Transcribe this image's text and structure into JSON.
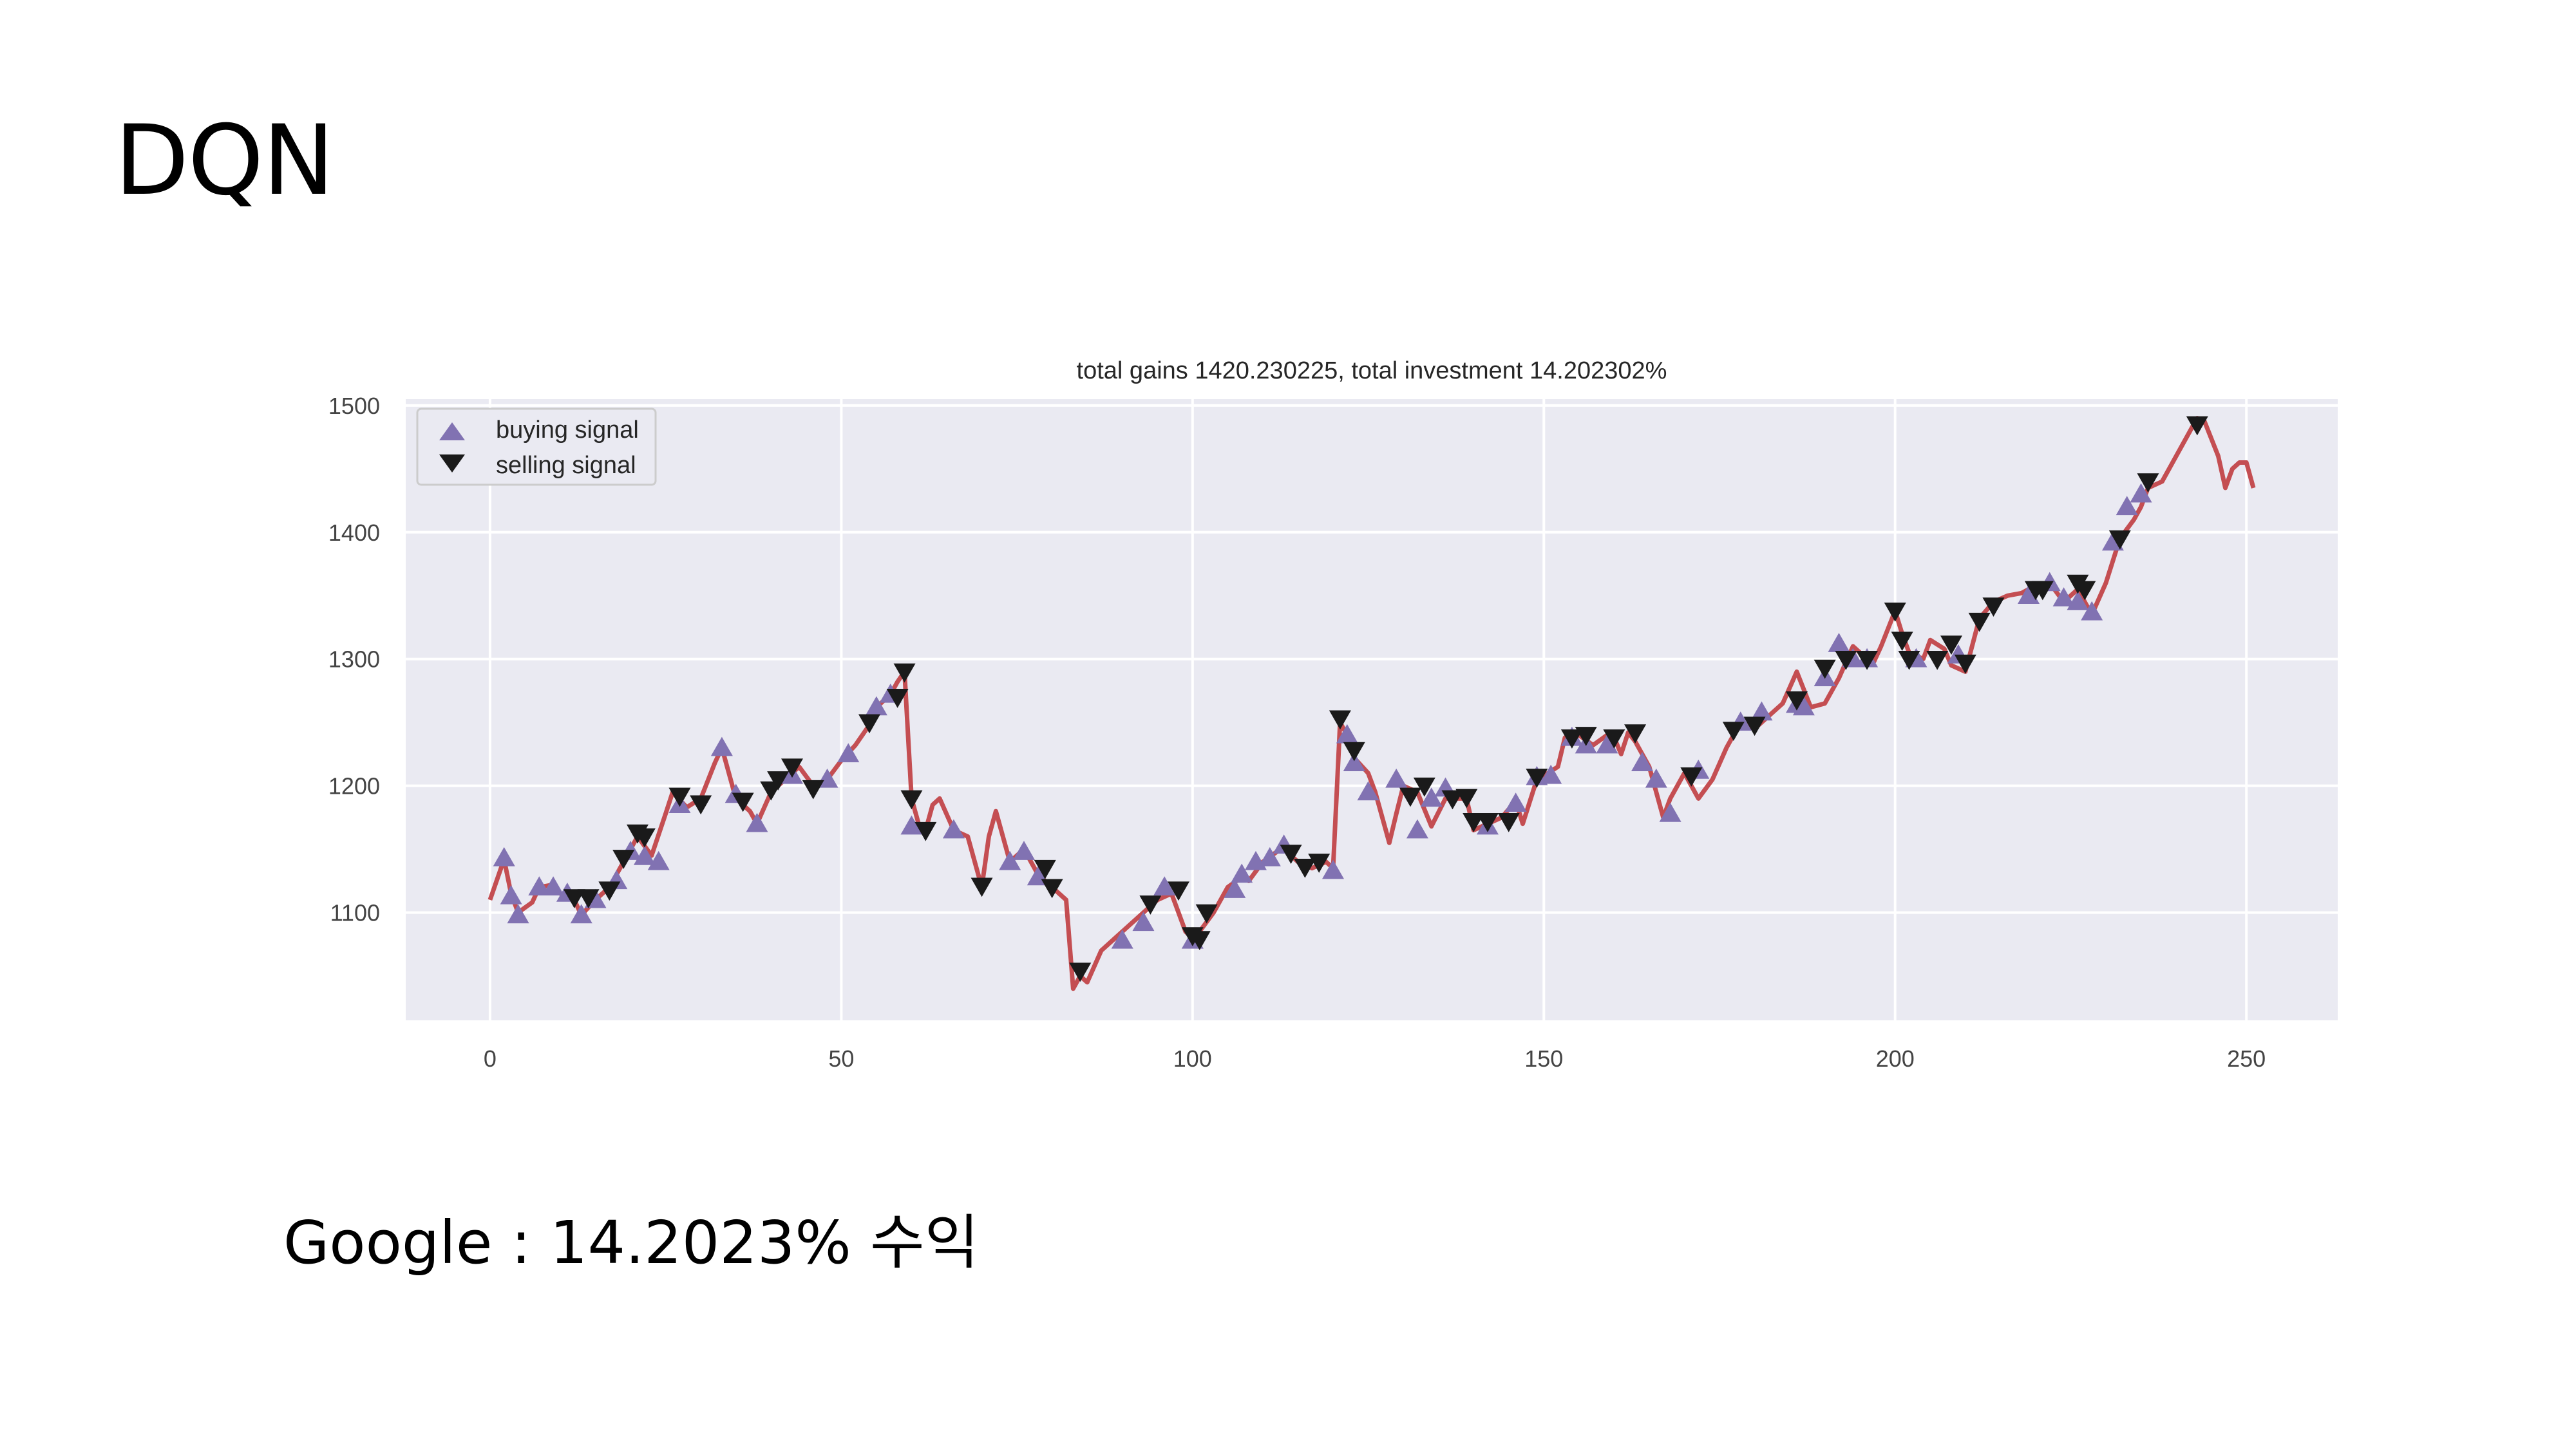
{
  "slide": {
    "title": "DQN",
    "caption": "Google : 14.2023% 수익"
  },
  "chart_data": {
    "type": "line",
    "title": "total gains 1420.230225, total investment 14.202302%",
    "xlabel": "",
    "ylabel": "",
    "xlim": [
      -12,
      263
    ],
    "ylim": [
      1015,
      1505
    ],
    "x_ticks": [
      0,
      50,
      100,
      150,
      200,
      250
    ],
    "y_ticks": [
      1100,
      1200,
      1300,
      1400,
      1500
    ],
    "grid": true,
    "legend_position": "upper-left",
    "colors": {
      "background": "#eaeaf2",
      "line": "#c44e52",
      "buy": "#8172b2",
      "sell": "#1a1a1a"
    },
    "series": [
      {
        "name": "",
        "kind": "price",
        "points": [
          [
            0,
            1110
          ],
          [
            2,
            1142
          ],
          [
            3,
            1115
          ],
          [
            4,
            1100
          ],
          [
            6,
            1108
          ],
          [
            7,
            1120
          ],
          [
            9,
            1122
          ],
          [
            10,
            1115
          ],
          [
            12,
            1110
          ],
          [
            13,
            1098
          ],
          [
            15,
            1110
          ],
          [
            17,
            1120
          ],
          [
            19,
            1140
          ],
          [
            21,
            1160
          ],
          [
            23,
            1145
          ],
          [
            25,
            1178
          ],
          [
            26,
            1195
          ],
          [
            28,
            1183
          ],
          [
            30,
            1190
          ],
          [
            32,
            1218
          ],
          [
            33,
            1230
          ],
          [
            35,
            1190
          ],
          [
            37,
            1180
          ],
          [
            38,
            1170
          ],
          [
            40,
            1195
          ],
          [
            42,
            1205
          ],
          [
            44,
            1215
          ],
          [
            46,
            1200
          ],
          [
            48,
            1205
          ],
          [
            50,
            1220
          ],
          [
            52,
            1232
          ],
          [
            54,
            1248
          ],
          [
            55,
            1262
          ],
          [
            57,
            1272
          ],
          [
            58,
            1282
          ],
          [
            59,
            1290
          ],
          [
            60,
            1190
          ],
          [
            61,
            1170
          ],
          [
            62,
            1165
          ],
          [
            63,
            1185
          ],
          [
            64,
            1190
          ],
          [
            66,
            1165
          ],
          [
            68,
            1160
          ],
          [
            70,
            1120
          ],
          [
            71,
            1160
          ],
          [
            72,
            1180
          ],
          [
            74,
            1140
          ],
          [
            76,
            1150
          ],
          [
            78,
            1130
          ],
          [
            80,
            1120
          ],
          [
            82,
            1110
          ],
          [
            83,
            1040
          ],
          [
            84,
            1050
          ],
          [
            85,
            1045
          ],
          [
            87,
            1070
          ],
          [
            89,
            1080
          ],
          [
            91,
            1090
          ],
          [
            93,
            1100
          ],
          [
            95,
            1110
          ],
          [
            97,
            1115
          ],
          [
            99,
            1085
          ],
          [
            100,
            1080
          ],
          [
            101,
            1085
          ],
          [
            103,
            1100
          ],
          [
            105,
            1120
          ],
          [
            107,
            1128
          ],
          [
            108,
            1125
          ],
          [
            110,
            1140
          ],
          [
            112,
            1148
          ],
          [
            113,
            1150
          ],
          [
            115,
            1140
          ],
          [
            117,
            1135
          ],
          [
            119,
            1140
          ],
          [
            120,
            1135
          ],
          [
            121,
            1250
          ],
          [
            122,
            1240
          ],
          [
            123,
            1222
          ],
          [
            125,
            1210
          ],
          [
            126,
            1195
          ],
          [
            128,
            1155
          ],
          [
            129,
            1178
          ],
          [
            130,
            1200
          ],
          [
            132,
            1195
          ],
          [
            134,
            1168
          ],
          [
            136,
            1190
          ],
          [
            138,
            1190
          ],
          [
            139,
            1190
          ],
          [
            140,
            1165
          ],
          [
            142,
            1170
          ],
          [
            144,
            1175
          ],
          [
            146,
            1188
          ],
          [
            147,
            1170
          ],
          [
            149,
            1205
          ],
          [
            150,
            1208
          ],
          [
            152,
            1215
          ],
          [
            153,
            1238
          ],
          [
            155,
            1240
          ],
          [
            157,
            1232
          ],
          [
            159,
            1240
          ],
          [
            160,
            1238
          ],
          [
            161,
            1225
          ],
          [
            162,
            1242
          ],
          [
            163,
            1235
          ],
          [
            165,
            1215
          ],
          [
            167,
            1175
          ],
          [
            168,
            1190
          ],
          [
            170,
            1210
          ],
          [
            172,
            1190
          ],
          [
            174,
            1205
          ],
          [
            176,
            1230
          ],
          [
            178,
            1250
          ],
          [
            180,
            1245
          ],
          [
            182,
            1255
          ],
          [
            184,
            1265
          ],
          [
            186,
            1290
          ],
          [
            188,
            1262
          ],
          [
            190,
            1265
          ],
          [
            192,
            1285
          ],
          [
            194,
            1310
          ],
          [
            196,
            1300
          ],
          [
            197,
            1298
          ],
          [
            198,
            1310
          ],
          [
            200,
            1338
          ],
          [
            201,
            1320
          ],
          [
            202,
            1305
          ],
          [
            204,
            1300
          ],
          [
            205,
            1315
          ],
          [
            207,
            1308
          ],
          [
            208,
            1295
          ],
          [
            210,
            1290
          ],
          [
            212,
            1332
          ],
          [
            214,
            1345
          ],
          [
            216,
            1350
          ],
          [
            218,
            1352
          ],
          [
            220,
            1358
          ],
          [
            221,
            1355
          ],
          [
            222,
            1360
          ],
          [
            224,
            1345
          ],
          [
            226,
            1355
          ],
          [
            228,
            1335
          ],
          [
            230,
            1360
          ],
          [
            232,
            1395
          ],
          [
            234,
            1410
          ],
          [
            235,
            1420
          ],
          [
            236,
            1435
          ],
          [
            238,
            1440
          ],
          [
            240,
            1460
          ],
          [
            242,
            1480
          ],
          [
            243,
            1490
          ],
          [
            244,
            1488
          ],
          [
            246,
            1460
          ],
          [
            247,
            1435
          ],
          [
            248,
            1450
          ],
          [
            249,
            1455
          ],
          [
            250,
            1455
          ],
          [
            251,
            1435
          ]
        ]
      },
      {
        "name": "buying signal",
        "kind": "buy",
        "points": [
          [
            2,
            1143
          ],
          [
            3,
            1113
          ],
          [
            4,
            1098
          ],
          [
            7,
            1120
          ],
          [
            9,
            1120
          ],
          [
            11,
            1115
          ],
          [
            13,
            1098
          ],
          [
            15,
            1110
          ],
          [
            18,
            1125
          ],
          [
            20,
            1148
          ],
          [
            22,
            1144
          ],
          [
            24,
            1140
          ],
          [
            27,
            1185
          ],
          [
            33,
            1230
          ],
          [
            35,
            1193
          ],
          [
            38,
            1170
          ],
          [
            43,
            1208
          ],
          [
            48,
            1205
          ],
          [
            51,
            1225
          ],
          [
            55,
            1262
          ],
          [
            57,
            1272
          ],
          [
            60,
            1168
          ],
          [
            66,
            1165
          ],
          [
            74,
            1140
          ],
          [
            76,
            1148
          ],
          [
            78,
            1128
          ],
          [
            90,
            1078
          ],
          [
            93,
            1092
          ],
          [
            96,
            1120
          ],
          [
            100,
            1078
          ],
          [
            106,
            1118
          ],
          [
            107,
            1130
          ],
          [
            109,
            1140
          ],
          [
            111,
            1143
          ],
          [
            113,
            1153
          ],
          [
            120,
            1133
          ],
          [
            122,
            1240
          ],
          [
            123,
            1218
          ],
          [
            125,
            1195
          ],
          [
            129,
            1205
          ],
          [
            132,
            1165
          ],
          [
            134,
            1190
          ],
          [
            136,
            1198
          ],
          [
            142,
            1168
          ],
          [
            146,
            1186
          ],
          [
            149,
            1207
          ],
          [
            151,
            1208
          ],
          [
            154,
            1238
          ],
          [
            156,
            1232
          ],
          [
            159,
            1232
          ],
          [
            164,
            1218
          ],
          [
            166,
            1205
          ],
          [
            168,
            1178
          ],
          [
            172,
            1212
          ],
          [
            178,
            1250
          ],
          [
            181,
            1258
          ],
          [
            186,
            1264
          ],
          [
            187,
            1262
          ],
          [
            190,
            1285
          ],
          [
            192,
            1312
          ],
          [
            194,
            1300
          ],
          [
            196,
            1300
          ],
          [
            203,
            1300
          ],
          [
            209,
            1303
          ],
          [
            219,
            1350
          ],
          [
            222,
            1360
          ],
          [
            224,
            1348
          ],
          [
            226,
            1345
          ],
          [
            228,
            1337
          ],
          [
            231,
            1392
          ],
          [
            233,
            1420
          ],
          [
            235,
            1430
          ]
        ]
      },
      {
        "name": "selling signal",
        "kind": "sell",
        "points": [
          [
            12,
            1112
          ],
          [
            14,
            1112
          ],
          [
            17,
            1118
          ],
          [
            19,
            1143
          ],
          [
            21,
            1163
          ],
          [
            22,
            1160
          ],
          [
            27,
            1192
          ],
          [
            30,
            1186
          ],
          [
            36,
            1188
          ],
          [
            40,
            1197
          ],
          [
            41,
            1205
          ],
          [
            43,
            1215
          ],
          [
            46,
            1198
          ],
          [
            54,
            1250
          ],
          [
            58,
            1270
          ],
          [
            59,
            1290
          ],
          [
            60,
            1190
          ],
          [
            62,
            1165
          ],
          [
            70,
            1121
          ],
          [
            79,
            1135
          ],
          [
            80,
            1120
          ],
          [
            84,
            1054
          ],
          [
            94,
            1107
          ],
          [
            98,
            1118
          ],
          [
            100,
            1082
          ],
          [
            101,
            1079
          ],
          [
            102,
            1100
          ],
          [
            114,
            1147
          ],
          [
            116,
            1136
          ],
          [
            118,
            1140
          ],
          [
            121,
            1253
          ],
          [
            123,
            1228
          ],
          [
            131,
            1192
          ],
          [
            133,
            1200
          ],
          [
            137,
            1190
          ],
          [
            139,
            1191
          ],
          [
            140,
            1172
          ],
          [
            142,
            1172
          ],
          [
            145,
            1172
          ],
          [
            149,
            1207
          ],
          [
            154,
            1238
          ],
          [
            156,
            1240
          ],
          [
            160,
            1238
          ],
          [
            163,
            1242
          ],
          [
            171,
            1208
          ],
          [
            177,
            1244
          ],
          [
            180,
            1248
          ],
          [
            186,
            1268
          ],
          [
            190,
            1293
          ],
          [
            193,
            1300
          ],
          [
            196,
            1300
          ],
          [
            200,
            1338
          ],
          [
            201,
            1315
          ],
          [
            202,
            1300
          ],
          [
            206,
            1300
          ],
          [
            208,
            1312
          ],
          [
            210,
            1297
          ],
          [
            212,
            1330
          ],
          [
            214,
            1342
          ],
          [
            220,
            1355
          ],
          [
            221,
            1355
          ],
          [
            226,
            1360
          ],
          [
            227,
            1355
          ],
          [
            232,
            1395
          ],
          [
            236,
            1440
          ],
          [
            243,
            1485
          ]
        ]
      }
    ]
  }
}
